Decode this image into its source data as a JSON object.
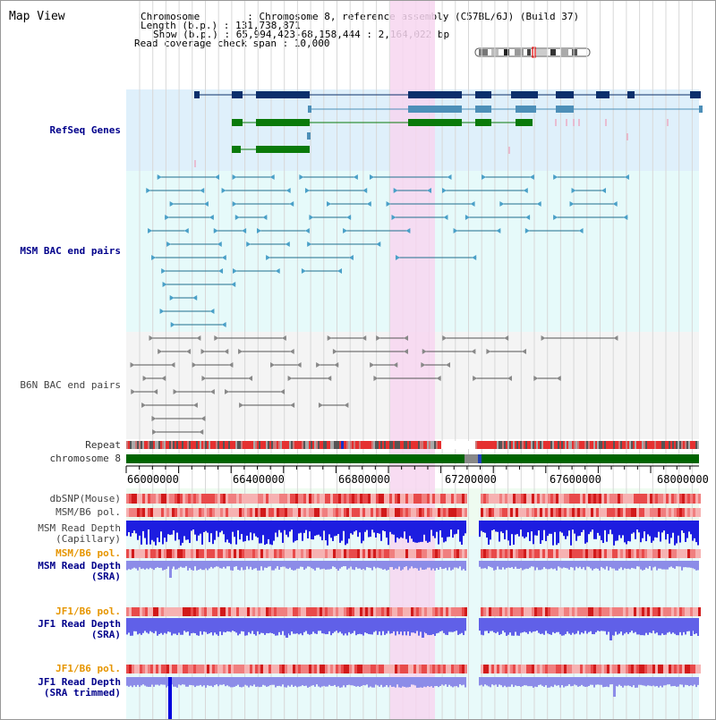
{
  "view_title": "Map View",
  "info": {
    "chromosome": "Chromosome        : Chromosome 8, reference assembly (C57BL/6J) (Build 37)",
    "length": "Length (b.p.) : 131,738,871",
    "show": "Show (b.p.) : 65,994,423-68,158,444 : 2,164,022 bp",
    "coverage": "Read coverage check span : 10,000"
  },
  "tracks": {
    "refseq": "RefSeq Genes",
    "msm_bac": "MSM BAC end pairs",
    "b6n_bac": "B6N BAC end pairs",
    "repeat": "Repeat",
    "chromosome": "chromosome 8",
    "dbsnp": "dbSNP(Mouse)",
    "msm_b6_pol1": "MSM/B6 pol.",
    "msm_depth_cap_1": "MSM Read Depth",
    "msm_depth_cap_2": "(Capillary)",
    "msm_b6_pol2": "MSM/B6 pol.",
    "msm_depth_sra_1": "MSM Read Depth",
    "msm_depth_sra_2": "(SRA)",
    "jf1_b6_pol1": "JF1/B6 pol.",
    "jf1_depth_sra_1": "JF1 Read Depth",
    "jf1_depth_sra_2": "(SRA)",
    "jf1_b6_pol2": "JF1/B6 pol.",
    "jf1_depth_trim_1": "JF1 Read Depth",
    "jf1_depth_trim_2": "(SRA trimmed)"
  },
  "ruler": {
    "ticks": [
      "66000000",
      "66400000",
      "66800000",
      "67200000",
      "67600000",
      "68000000"
    ]
  },
  "colors": {
    "refseq_bg": "#dff0fb",
    "bac_bg": "#e6fafa",
    "b6n_bg": "#f4f4f4",
    "lower_bg": "#eefbf0",
    "highlight": "#f7d6f0",
    "chromosome": "#006400",
    "label_blue": "#00008b",
    "label_orange": "#e69500"
  }
}
